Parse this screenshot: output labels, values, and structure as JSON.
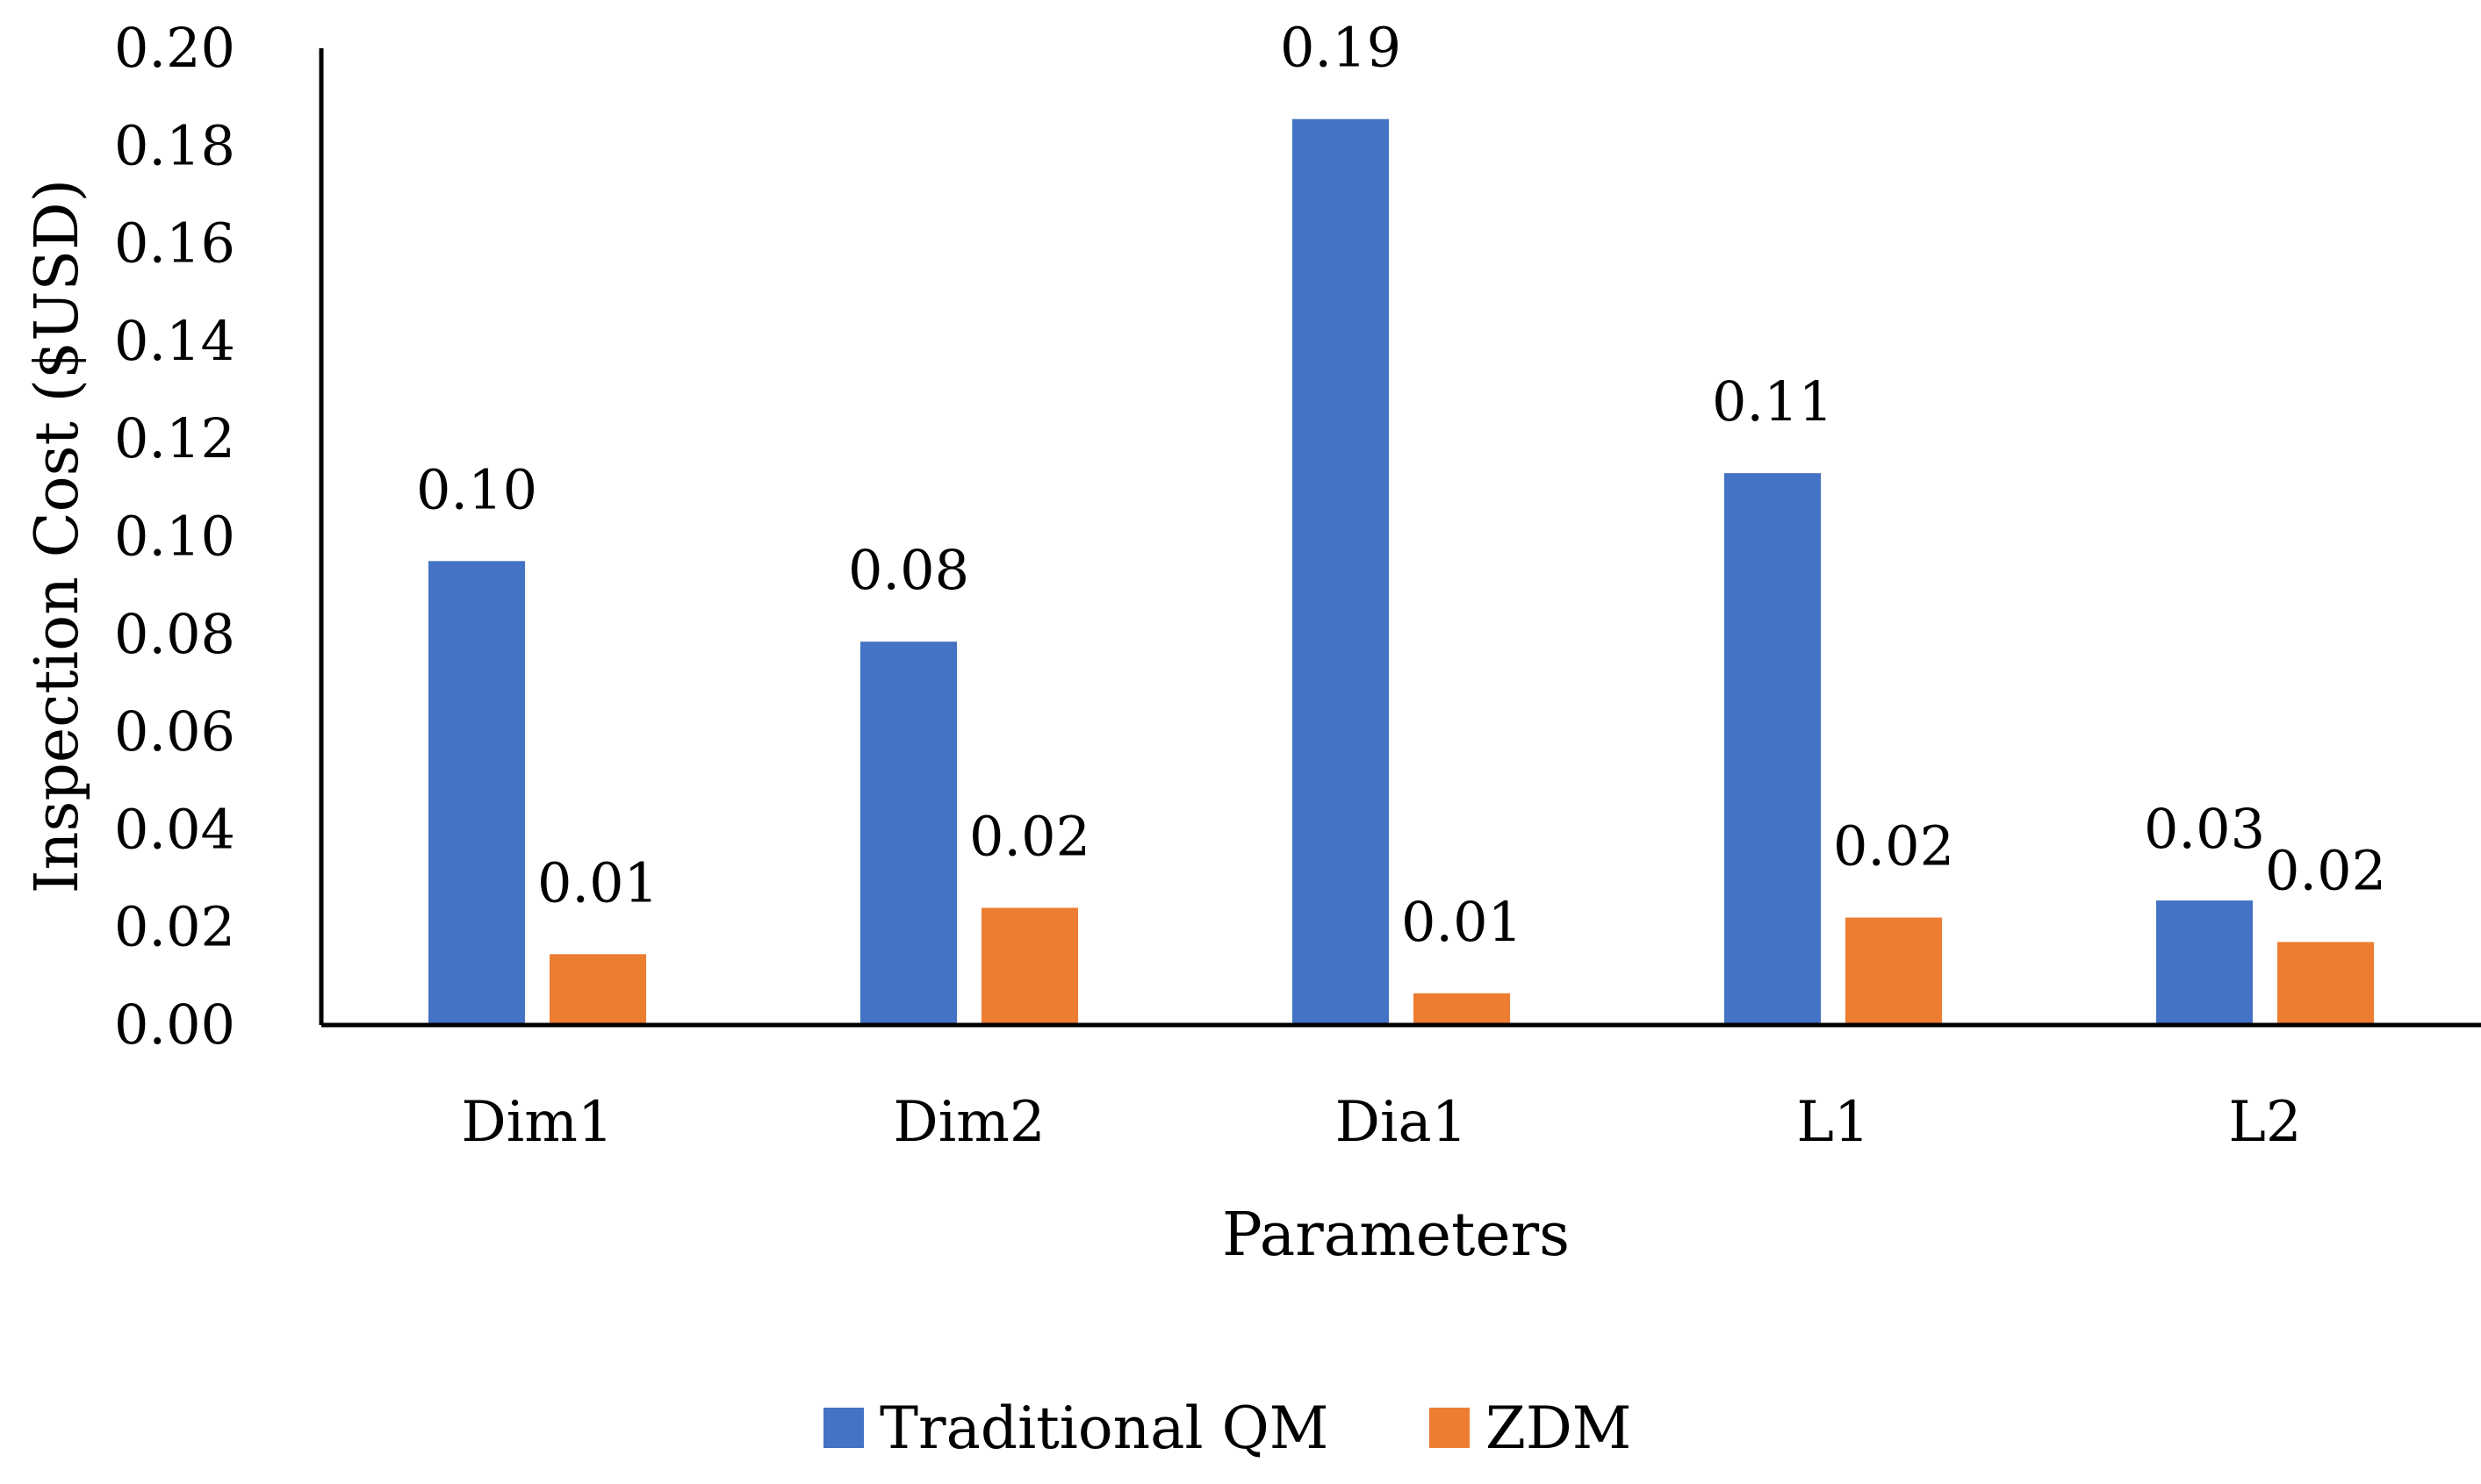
{
  "chart_data": {
    "type": "bar",
    "title": "",
    "xlabel": "Parameters",
    "ylabel": "Inspection Cost ($USD)",
    "ylim": [
      0,
      0.2
    ],
    "yticks": [
      0.0,
      0.02,
      0.04,
      0.06,
      0.08,
      0.1,
      0.12,
      0.14,
      0.16,
      0.18,
      0.2
    ],
    "ytick_labels": [
      "0.00",
      "0.02",
      "0.04",
      "0.06",
      "0.08",
      "0.10",
      "0.12",
      "0.14",
      "0.16",
      "0.18",
      "0.20"
    ],
    "grid": false,
    "legend_position": "bottom",
    "categories": [
      "Dim1",
      "Dim2",
      "Dia1",
      "L1",
      "L2"
    ],
    "series": [
      {
        "name": "Traditional QM",
        "color": "#4472C4",
        "values": [
          0.095,
          0.0785,
          0.1855,
          0.113,
          0.0255
        ],
        "labels": [
          "0.10",
          "0.08",
          "0.19",
          "0.11",
          "0.03"
        ]
      },
      {
        "name": "ZDM",
        "color": "#ED7D31",
        "values": [
          0.0145,
          0.024,
          0.0065,
          0.022,
          0.017
        ],
        "labels": [
          "0.01",
          "0.02",
          "0.01",
          "0.02",
          "0.02"
        ]
      }
    ]
  }
}
